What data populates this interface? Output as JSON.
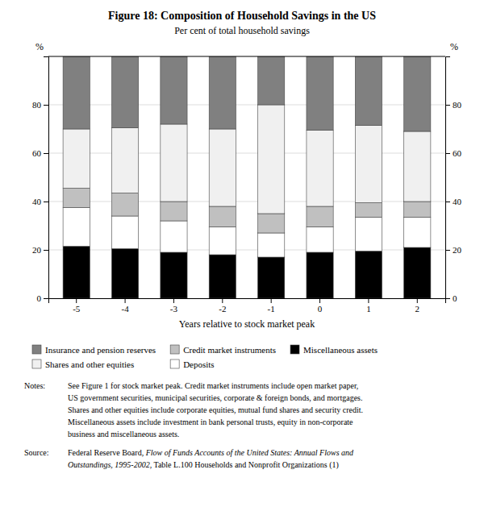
{
  "chart_data": {
    "type": "bar",
    "stacked": true,
    "title": "Figure 18: Composition of Household Savings in the US",
    "subtitle": "Per cent of total household savings",
    "xlabel": "Years relative to stock market peak",
    "ylabel": "%",
    "y2label": "%",
    "categories": [
      -5,
      -4,
      -3,
      -2,
      -1,
      0,
      1,
      2
    ],
    "series": [
      {
        "name": "Miscellaneous assets",
        "color": "#000000",
        "values": [
          21.5,
          20.5,
          19.0,
          18.0,
          17.0,
          19.0,
          19.5,
          21.0
        ]
      },
      {
        "name": "Deposits",
        "color": "#ffffff",
        "values": [
          16.0,
          13.5,
          13.0,
          11.5,
          10.0,
          10.5,
          14.0,
          12.5
        ]
      },
      {
        "name": "Credit market instruments",
        "color": "#c0c0c0",
        "values": [
          8.0,
          9.5,
          8.0,
          8.5,
          8.0,
          8.5,
          6.0,
          6.5
        ]
      },
      {
        "name": "Shares and other equities",
        "color": "#f0f0f0",
        "values": [
          24.5,
          27.0,
          32.0,
          32.0,
          45.0,
          31.5,
          32.0,
          29.0
        ]
      },
      {
        "name": "Insurance and pension reserves",
        "color": "#808080",
        "values": [
          30.0,
          29.5,
          28.0,
          30.0,
          20.0,
          30.5,
          28.5,
          31.0
        ]
      }
    ],
    "ylim": [
      0,
      100
    ],
    "yticks": [
      0,
      20,
      40,
      60,
      80
    ],
    "y2lim": [
      0,
      100
    ],
    "y2ticks": [
      0,
      20,
      40,
      60,
      80
    ],
    "grid": true,
    "legend": "bottom",
    "notes": {
      "label": "Notes:",
      "lines": [
        "See Figure 1 for stock market peak. Credit market instruments include open market paper,",
        "US government securities, municipal securities, corporate & foreign bonds, and mortgages.",
        "Shares and other equities include corporate equities, mutual fund shares and security credit.",
        "Miscellaneous assets include investment in bank personal trusts, equity in non-corporate",
        "business and miscellaneous assets."
      ]
    },
    "source": {
      "label": "Source:",
      "author": "Federal Reserve Board, ",
      "publication_lines": [
        "Flow of Funds Accounts of the United States: Annual Flows and",
        "Outstandings, 1995-2002"
      ],
      "rest": ", Table L.100 Households and Nonprofit Organizations (1)"
    }
  }
}
